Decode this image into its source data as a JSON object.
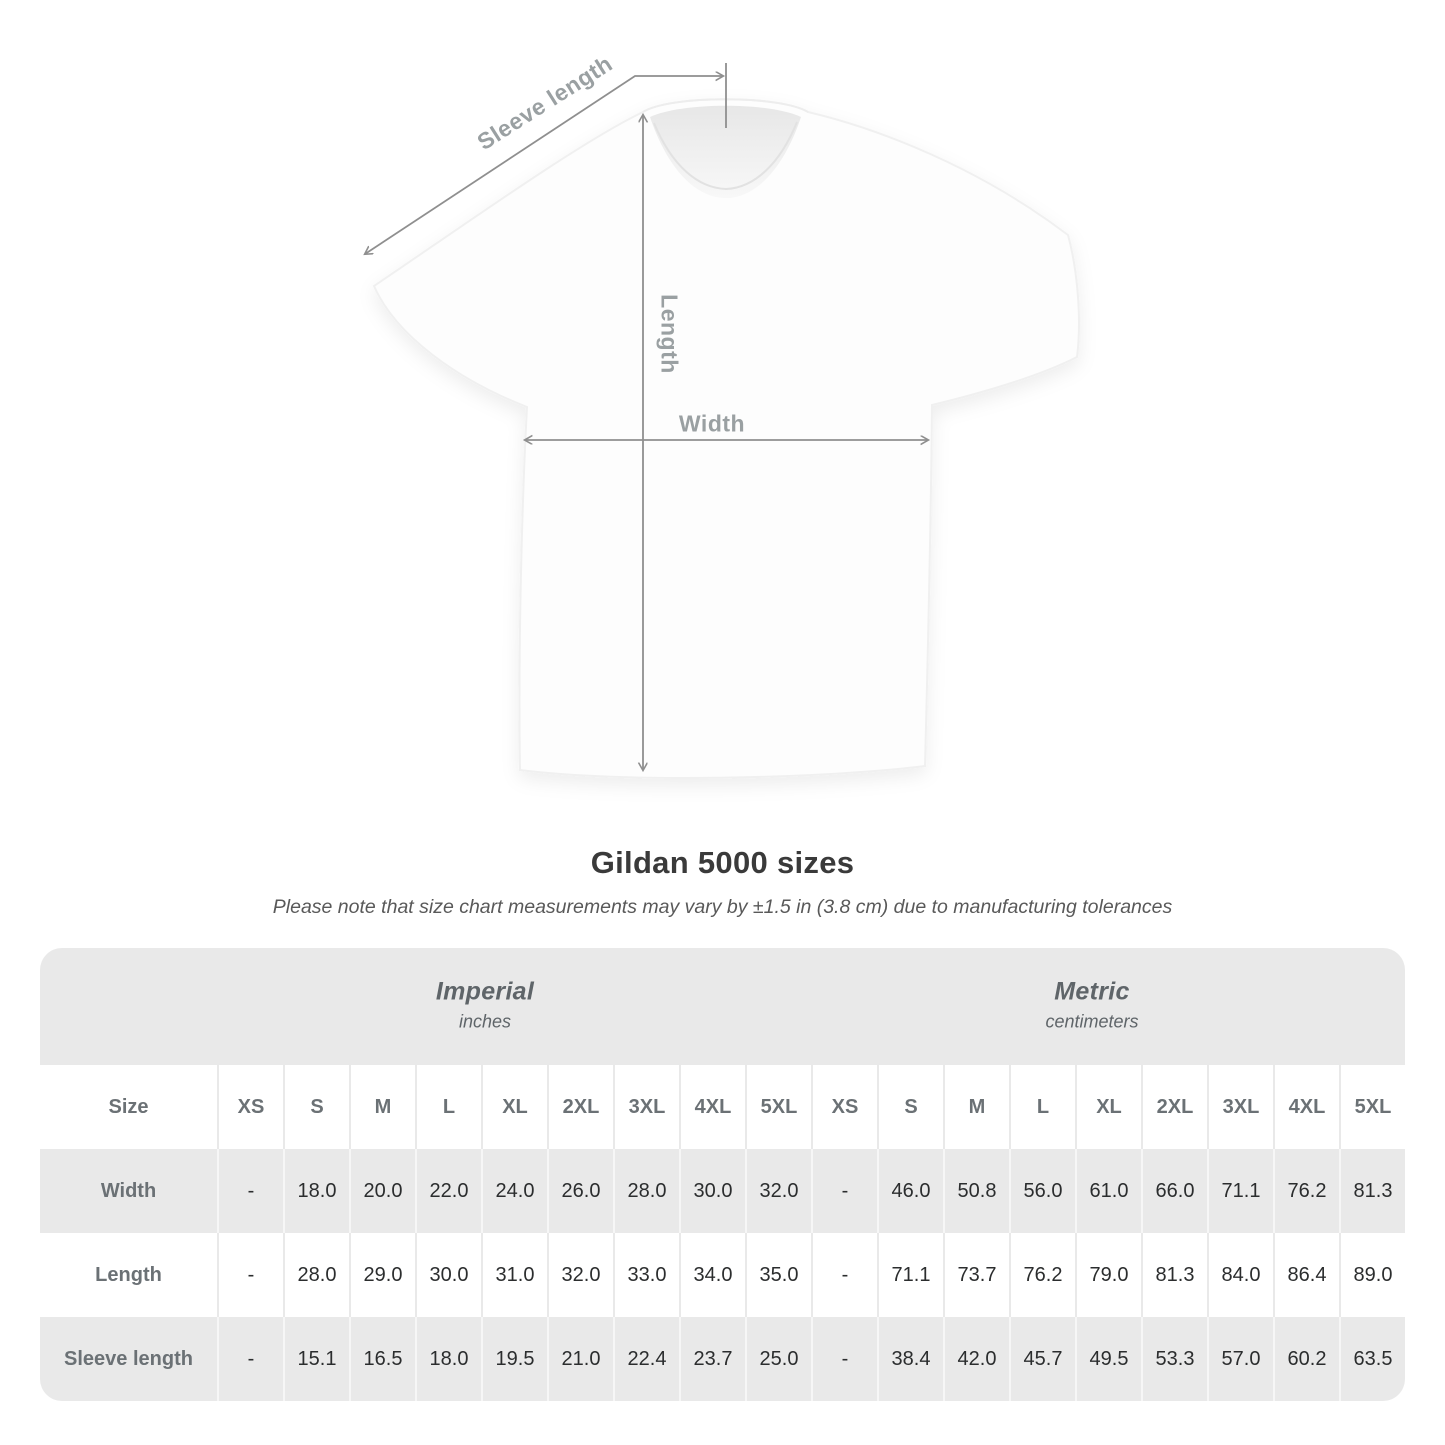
{
  "shirt": {
    "labels": {
      "sleeve_length": "Sleeve length",
      "length": "Length",
      "width": "Width"
    },
    "arrow_color": "#8f8f8f",
    "label_color": "#9aa0a2"
  },
  "heading": {
    "title": "Gildan 5000 sizes",
    "subtitle": "Please note that size chart measurements may vary by ±1.5 in (3.8 cm) due to manufacturing tolerances"
  },
  "table": {
    "groups": [
      {
        "name": "Imperial",
        "unit": "inches"
      },
      {
        "name": "Metric",
        "unit": "centimeters"
      }
    ],
    "size_row": {
      "label": "Size",
      "imperial": [
        "XS",
        "S",
        "M",
        "L",
        "XL",
        "2XL",
        "3XL",
        "4XL",
        "5XL"
      ],
      "metric": [
        "XS",
        "S",
        "M",
        "L",
        "XL",
        "2XL",
        "3XL",
        "4XL",
        "5XL"
      ]
    },
    "rows": [
      {
        "label": "Width",
        "imperial": [
          "-",
          "18.0",
          "20.0",
          "22.0",
          "24.0",
          "26.0",
          "28.0",
          "30.0",
          "32.0"
        ],
        "metric": [
          "-",
          "46.0",
          "50.8",
          "56.0",
          "61.0",
          "66.0",
          "71.1",
          "76.2",
          "81.3"
        ]
      },
      {
        "label": "Length",
        "imperial": [
          "-",
          "28.0",
          "29.0",
          "30.0",
          "31.0",
          "32.0",
          "33.0",
          "34.0",
          "35.0"
        ],
        "metric": [
          "-",
          "71.1",
          "73.7",
          "76.2",
          "79.0",
          "81.3",
          "84.0",
          "86.4",
          "89.0"
        ]
      },
      {
        "label": "Sleeve length",
        "imperial": [
          "-",
          "15.1",
          "16.5",
          "18.0",
          "19.5",
          "21.0",
          "22.4",
          "23.7",
          "25.0"
        ],
        "metric": [
          "-",
          "38.4",
          "42.0",
          "45.7",
          "49.5",
          "53.3",
          "57.0",
          "60.2",
          "63.5"
        ]
      }
    ],
    "colors": {
      "band_bg": "#e9e9e9",
      "stripe_bg": "#e9e9e9",
      "header_text": "#6b7175",
      "value_text": "#2b2d2e"
    }
  }
}
